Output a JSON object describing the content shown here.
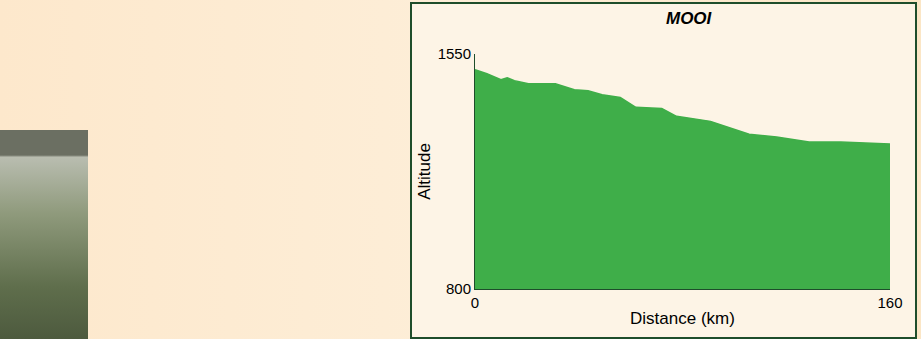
{
  "chart_data": {
    "type": "area",
    "title": "MOOI",
    "x_label": "Distance (km)",
    "y_label": "Altitude",
    "x": [
      0,
      4.6,
      10,
      12.4,
      15.2,
      20.6,
      31,
      38.3,
      43.6,
      49,
      56,
      62,
      72,
      77.7,
      90.8,
      105.7,
      116.3,
      128.8,
      141,
      160
    ],
    "values": [
      1500,
      1487,
      1468,
      1474,
      1465,
      1455,
      1455,
      1436,
      1433,
      1420,
      1411,
      1380,
      1376,
      1351,
      1335,
      1294,
      1285,
      1269,
      1269,
      1263
    ],
    "color": "#3fae49",
    "xlim": [
      0,
      160
    ],
    "ylim": [
      800,
      1550
    ],
    "xticks": [
      0,
      160
    ],
    "yticks": [
      800,
      1550
    ],
    "grid": false
  }
}
